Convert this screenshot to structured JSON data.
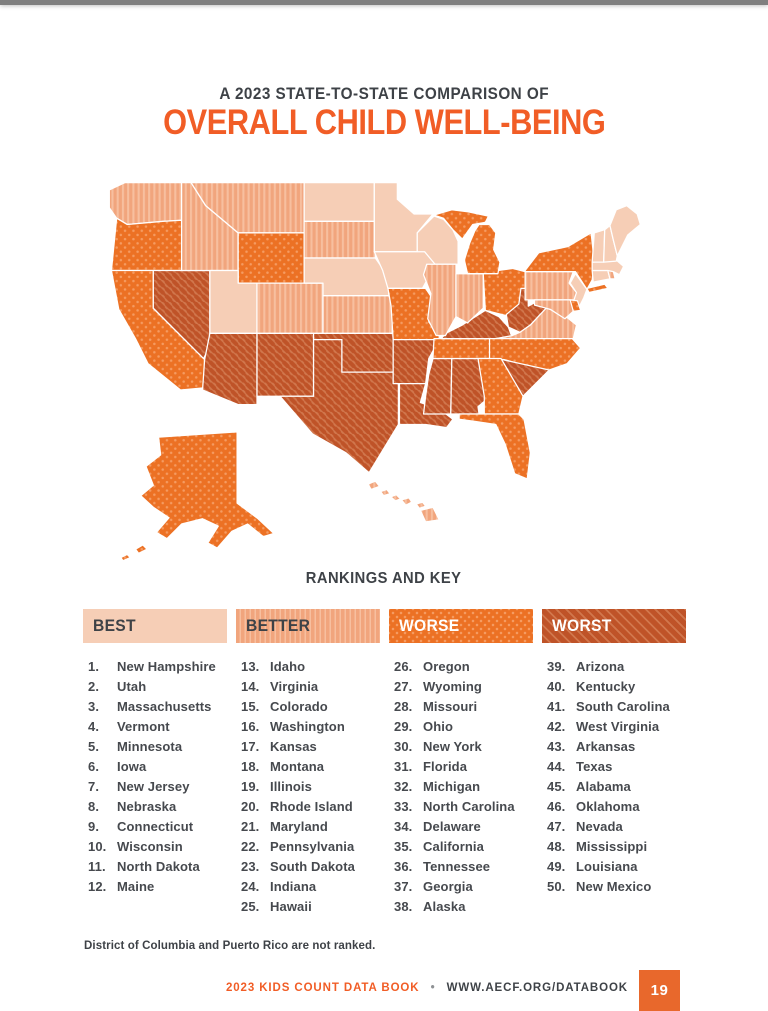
{
  "page": {
    "title_line1": "A 2023 STATE-TO-STATE COMPARISON OF",
    "title_line2": "OVERALL CHILD WELL-BEING",
    "section_heading": "RANKINGS AND KEY",
    "footnote": "District of Columbia and Puerto Rico are not ranked.",
    "footer": {
      "book": "2023 KIDS COUNT DATA BOOK",
      "separator": "•",
      "url": "WWW.AECF.ORG/DATABOOK",
      "page_number": "19"
    }
  },
  "colors": {
    "topbar": "#7F7F7F",
    "charcoal": "#3E4247",
    "list_text": "#46494E",
    "accent_orange": "#F15D26",
    "page_square": "#E8682C",
    "separator_gray": "#8E9194",
    "best": "#F6CEB6",
    "better": "#F1A57D",
    "better_stripe": "#F7BF9F",
    "worse": "#EC7124",
    "worse_dot": "#F59B61",
    "worst": "#BF5328",
    "worst_stripe": "#D1774D"
  },
  "map": {
    "description": "United States choropleth of overall child well-being rank, 2023",
    "not_ranked": [
      "District of Columbia",
      "Puerto Rico"
    ]
  },
  "rankings": {
    "columns": [
      {
        "key": "best",
        "label": "BEST",
        "header_text": "dark",
        "items": [
          {
            "rank": "1.",
            "state": "New Hampshire"
          },
          {
            "rank": "2.",
            "state": "Utah"
          },
          {
            "rank": "3.",
            "state": "Massachusetts"
          },
          {
            "rank": "4.",
            "state": "Vermont"
          },
          {
            "rank": "5.",
            "state": "Minnesota"
          },
          {
            "rank": "6.",
            "state": "Iowa"
          },
          {
            "rank": "7.",
            "state": "New Jersey"
          },
          {
            "rank": "8.",
            "state": "Nebraska"
          },
          {
            "rank": "9.",
            "state": "Connecticut"
          },
          {
            "rank": "10.",
            "state": "Wisconsin"
          },
          {
            "rank": "11.",
            "state": "North Dakota"
          },
          {
            "rank": "12.",
            "state": "Maine"
          }
        ]
      },
      {
        "key": "better",
        "label": "BETTER",
        "header_text": "dark",
        "items": [
          {
            "rank": "13.",
            "state": "Idaho"
          },
          {
            "rank": "14.",
            "state": "Virginia"
          },
          {
            "rank": "15.",
            "state": "Colorado"
          },
          {
            "rank": "16.",
            "state": "Washington"
          },
          {
            "rank": "17.",
            "state": "Kansas"
          },
          {
            "rank": "18.",
            "state": "Montana"
          },
          {
            "rank": "19.",
            "state": "Illinois"
          },
          {
            "rank": "20.",
            "state": "Rhode Island"
          },
          {
            "rank": "21.",
            "state": "Maryland"
          },
          {
            "rank": "22.",
            "state": "Pennsylvania"
          },
          {
            "rank": "23.",
            "state": "South Dakota"
          },
          {
            "rank": "24.",
            "state": "Indiana"
          },
          {
            "rank": "25.",
            "state": "Hawaii"
          }
        ]
      },
      {
        "key": "worse",
        "label": "WORSE",
        "header_text": "light",
        "items": [
          {
            "rank": "26.",
            "state": "Oregon"
          },
          {
            "rank": "27.",
            "state": "Wyoming"
          },
          {
            "rank": "28.",
            "state": "Missouri"
          },
          {
            "rank": "29.",
            "state": "Ohio"
          },
          {
            "rank": "30.",
            "state": "New York"
          },
          {
            "rank": "31.",
            "state": "Florida"
          },
          {
            "rank": "32.",
            "state": "Michigan"
          },
          {
            "rank": "33.",
            "state": "North Carolina"
          },
          {
            "rank": "34.",
            "state": "Delaware"
          },
          {
            "rank": "35.",
            "state": "California"
          },
          {
            "rank": "36.",
            "state": "Tennessee"
          },
          {
            "rank": "37.",
            "state": "Georgia"
          },
          {
            "rank": "38.",
            "state": "Alaska"
          }
        ]
      },
      {
        "key": "worst",
        "label": "WORST",
        "header_text": "light",
        "items": [
          {
            "rank": "39.",
            "state": "Arizona"
          },
          {
            "rank": "40.",
            "state": "Kentucky"
          },
          {
            "rank": "41.",
            "state": "South Carolina"
          },
          {
            "rank": "42.",
            "state": "West Virginia"
          },
          {
            "rank": "43.",
            "state": "Arkansas"
          },
          {
            "rank": "44.",
            "state": "Texas"
          },
          {
            "rank": "45.",
            "state": "Alabama"
          },
          {
            "rank": "46.",
            "state": "Oklahoma"
          },
          {
            "rank": "47.",
            "state": "Nevada"
          },
          {
            "rank": "48.",
            "state": "Mississippi"
          },
          {
            "rank": "49.",
            "state": "Louisiana"
          },
          {
            "rank": "50.",
            "state": "New Mexico"
          }
        ]
      }
    ]
  }
}
